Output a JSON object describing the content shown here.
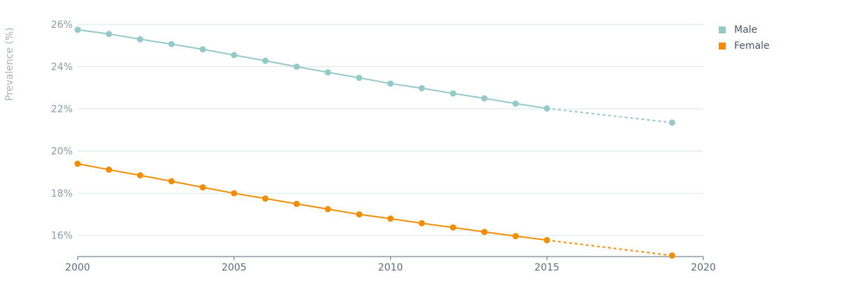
{
  "chart_data": {
    "type": "line",
    "ylabel": "Prevalence (%)",
    "xlabel": "",
    "xlim": [
      2000,
      2020
    ],
    "ylim": [
      15,
      26.3
    ],
    "x_ticks": [
      2000,
      2005,
      2010,
      2015,
      2020
    ],
    "y_ticks": [
      16,
      18,
      20,
      22,
      24,
      26
    ],
    "y_tick_labels": [
      "16%",
      "18%",
      "20%",
      "22%",
      "24%",
      "26%"
    ],
    "x_tick_labels": [
      "2000",
      "2005",
      "2010",
      "2015",
      "2020"
    ],
    "grid": true,
    "legend_position": "top-right",
    "series": [
      {
        "name": "Male",
        "color": "#93c9c6",
        "x": [
          2000,
          2001,
          2002,
          2003,
          2004,
          2005,
          2006,
          2007,
          2008,
          2009,
          2010,
          2011,
          2012,
          2013,
          2014,
          2015,
          2019
        ],
        "values": [
          25.75,
          25.55,
          25.3,
          25.07,
          24.82,
          24.55,
          24.28,
          24.0,
          23.73,
          23.47,
          23.2,
          22.98,
          22.73,
          22.5,
          22.25,
          22.02,
          21.35
        ],
        "projected_from_index": 15
      },
      {
        "name": "Female",
        "color": "#f28c00",
        "x": [
          2000,
          2001,
          2002,
          2003,
          2004,
          2005,
          2006,
          2007,
          2008,
          2009,
          2010,
          2011,
          2012,
          2013,
          2014,
          2015,
          2019
        ],
        "values": [
          19.4,
          19.12,
          18.85,
          18.57,
          18.28,
          18.0,
          17.75,
          17.5,
          17.25,
          17.0,
          16.8,
          16.58,
          16.38,
          16.17,
          15.97,
          15.78,
          15.05
        ],
        "projected_from_index": 15
      }
    ]
  }
}
